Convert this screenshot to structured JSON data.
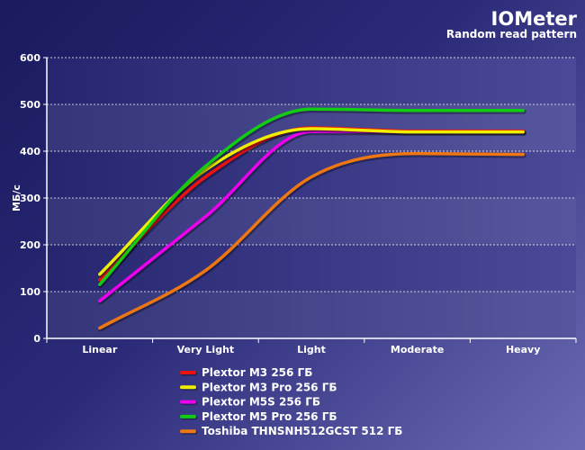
{
  "header": {
    "title": "IOMeter",
    "subtitle": "Random read pattern"
  },
  "chart_data": {
    "type": "line",
    "title": "IOMeter",
    "subtitle": "Random read pattern",
    "xlabel": "",
    "ylabel": "МБ/с",
    "ylim": [
      0,
      600
    ],
    "yticks": [
      0,
      100,
      200,
      300,
      400,
      500,
      600
    ],
    "grid": true,
    "legend_position": "bottom",
    "categories": [
      "Linear",
      "Very Light",
      "Light",
      "Moderate",
      "Heavy"
    ],
    "series": [
      {
        "name": "Plextor M3 256 ГБ",
        "color": "#ee1111",
        "values": [
          125,
          345,
          450,
          443,
          443
        ]
      },
      {
        "name": "Plextor M3 Pro 256 ГБ",
        "color": "#eeee00",
        "values": [
          137,
          360,
          448,
          441,
          441
        ]
      },
      {
        "name": "Plextor M5S 256 ГБ",
        "color": "#ee00ee",
        "values": [
          80,
          260,
          442,
          441,
          441
        ]
      },
      {
        "name": "Plextor M5 Pro 256 ГБ",
        "color": "#11cc11",
        "values": [
          115,
          368,
          490,
          487,
          487
        ]
      },
      {
        "name": "Toshiba THNSNH512GCST 512 ГБ",
        "color": "#ee7711",
        "values": [
          22,
          145,
          345,
          395,
          393
        ]
      }
    ]
  }
}
